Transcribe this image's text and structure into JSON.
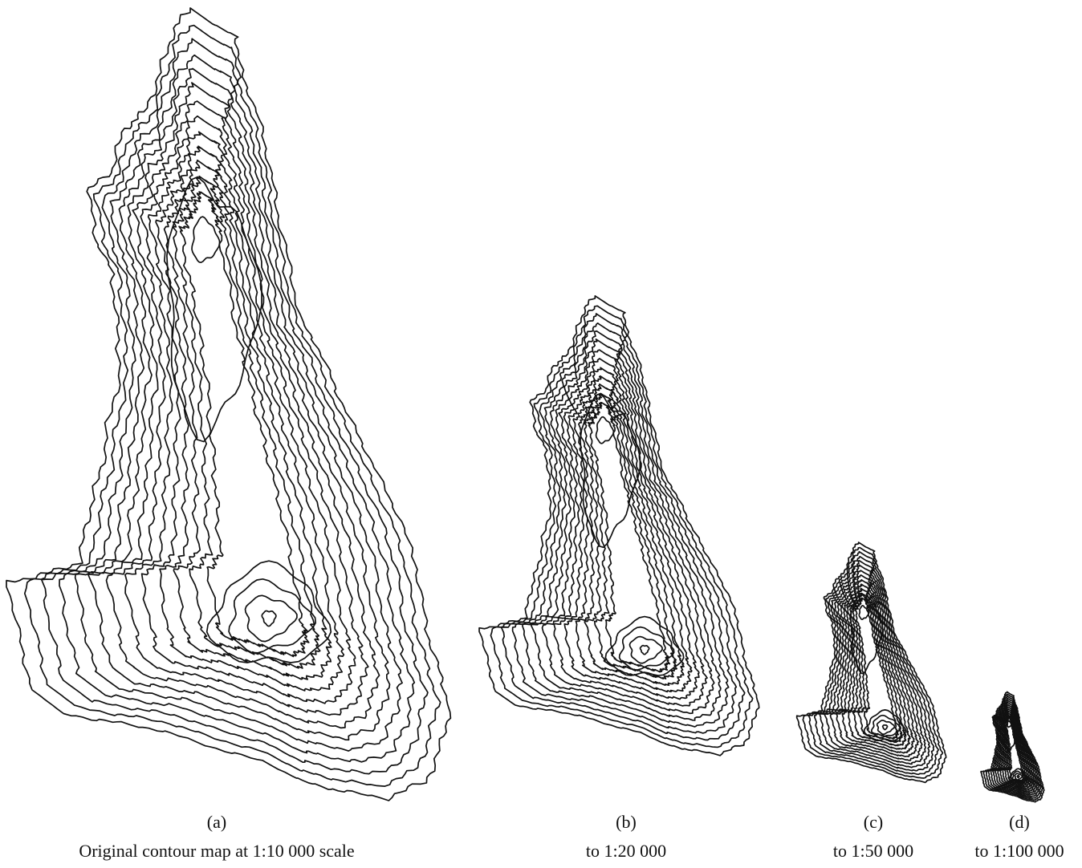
{
  "panels": [
    {
      "label": "(a)",
      "caption": "Original contour map at 1:10 000 scale"
    },
    {
      "label": "(b)",
      "caption": "to 1:20 000"
    },
    {
      "label": "(c)",
      "caption": "to 1:50 000"
    },
    {
      "label": "(d)",
      "caption": "to 1:100 000"
    }
  ]
}
